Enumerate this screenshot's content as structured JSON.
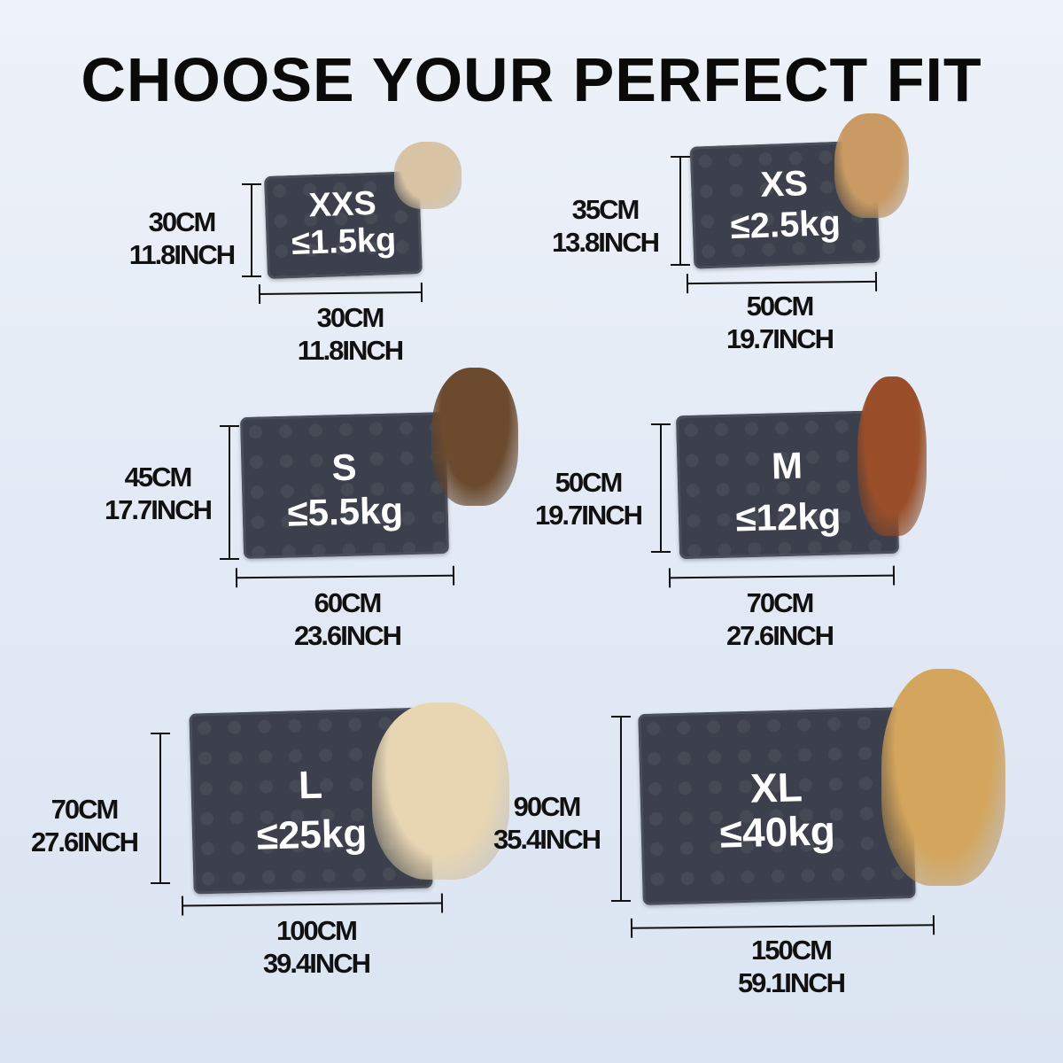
{
  "title": "CHOOSE YOUR PERFECT FIT",
  "sizes": [
    {
      "size": "XXS",
      "weight": "≤1.5kg",
      "height_cm": "30CM",
      "height_in": "11.8INCH",
      "width_cm": "30CM",
      "width_in": "11.8INCH",
      "pet": "hamster"
    },
    {
      "size": "XS",
      "weight": "≤2.5kg",
      "height_cm": "35CM",
      "height_in": "13.8INCH",
      "width_cm": "50CM",
      "width_in": "19.7INCH",
      "pet": "kitten"
    },
    {
      "size": "S",
      "weight": "≤5.5kg",
      "height_cm": "45CM",
      "height_in": "17.7INCH",
      "width_cm": "60CM",
      "width_in": "23.6INCH",
      "pet": "yorkshire-terrier"
    },
    {
      "size": "M",
      "weight": "≤12kg",
      "height_cm": "50CM",
      "height_in": "19.7INCH",
      "width_cm": "70CM",
      "width_in": "27.6INCH",
      "pet": "poodle"
    },
    {
      "size": "L",
      "weight": "≤25kg",
      "height_cm": "70CM",
      "height_in": "27.6INCH",
      "width_cm": "100CM",
      "width_in": "39.4INCH",
      "pet": "labrador"
    },
    {
      "size": "XL",
      "weight": "≤40kg",
      "height_cm": "90CM",
      "height_in": "35.4INCH",
      "width_cm": "150CM",
      "width_in": "59.1INCH",
      "pet": "golden-retriever"
    }
  ],
  "colors": {
    "mat": "#3b404c",
    "text": "#111111",
    "mat_text": "#ffffff"
  }
}
